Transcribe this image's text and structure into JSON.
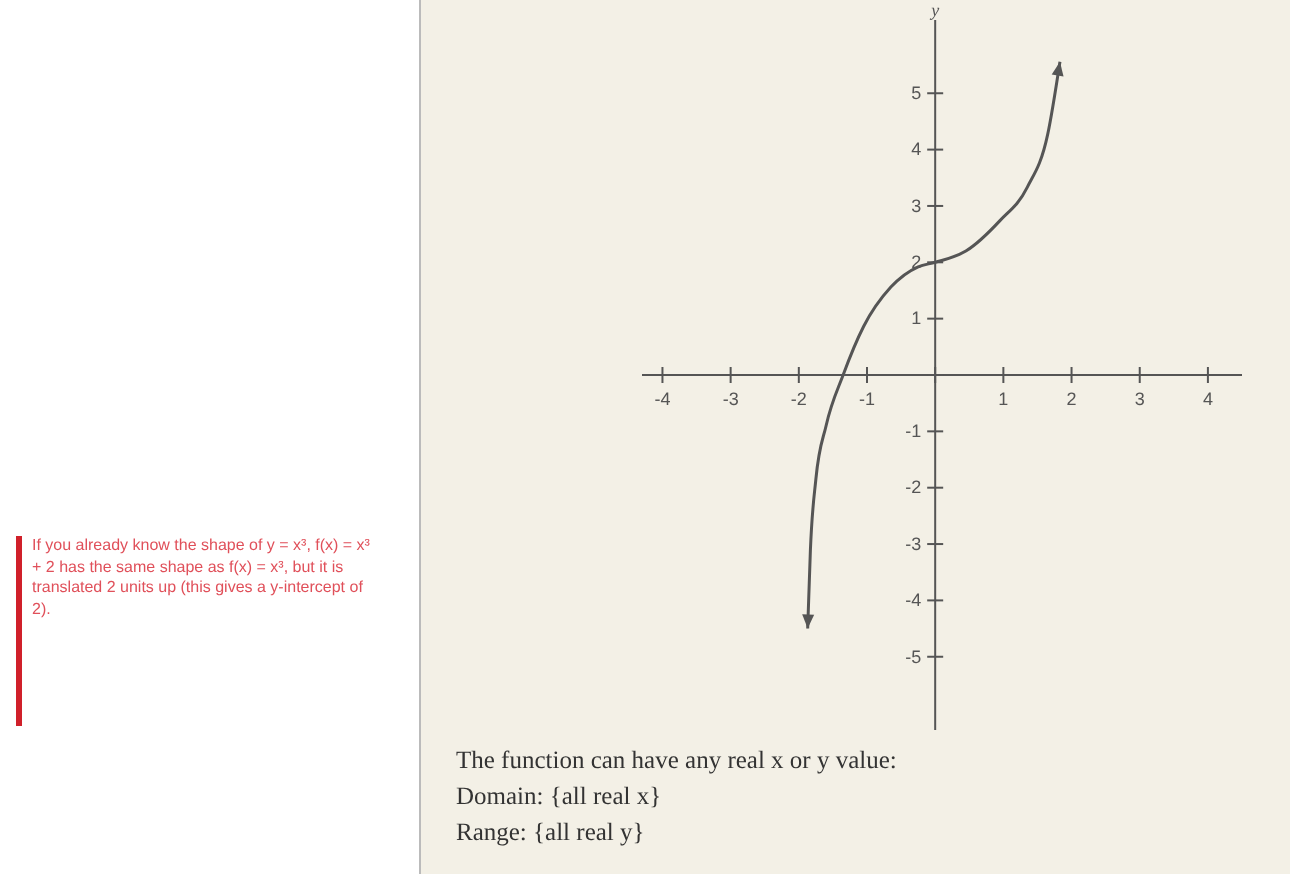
{
  "chart_data": {
    "type": "line",
    "ylabel": "y",
    "x": [
      -1.87,
      -1.83,
      -1.75,
      -1.6,
      -1.35,
      -1.05,
      -0.65,
      -0.25,
      0,
      0.45,
      0.95,
      1.35,
      1.65,
      1.83
    ],
    "series": [
      {
        "color": "#555555",
        "values": [
          -4.5,
          -3.1,
          -1.85,
          -0.9,
          0,
          0.86,
          1.56,
          1.92,
          2,
          2.2,
          2.74,
          3.33,
          4.27,
          5.56
        ]
      }
    ],
    "xlim": [
      -4.3,
      4.5
    ],
    "ylim": [
      -6.3,
      6.3
    ],
    "xticks": [
      -4,
      -3,
      -2,
      -1,
      {
        "value": 0,
        "label": null
      },
      1,
      2,
      3,
      4
    ],
    "yticks": [
      -5,
      -4,
      -3,
      -2,
      -1,
      {
        "value": 0,
        "label": null
      },
      1,
      2,
      3,
      4,
      5
    ],
    "grid": false,
    "marker": "none",
    "line_style": "solid",
    "annotations": [
      "If you already know the shape of y = x³, f(x) = x³ + 2 has the same shape as f(x) = x³, but it is translated 2 units up (this gives a y-intercept of 2).",
      "The function can have any real x or y value:",
      "Domain: {all real x}",
      "Range: {all real y}"
    ]
  }
}
